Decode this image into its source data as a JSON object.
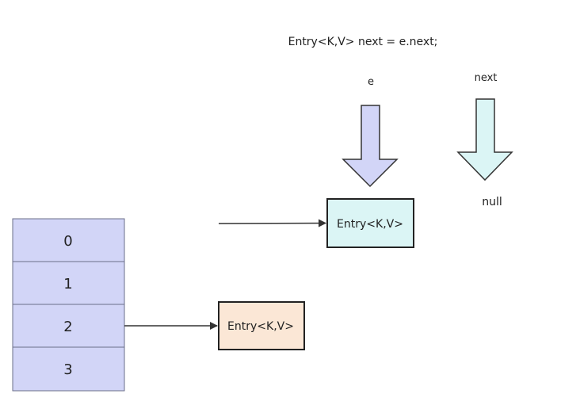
{
  "code_line": "Entry<K,V> next = e.next;",
  "pointer_e": {
    "label": "e",
    "fill": "#d2d5f7"
  },
  "pointer_next": {
    "label": "next",
    "fill": "#dbf5f5",
    "target": "null"
  },
  "table": {
    "fill": "#d2d5f7",
    "stroke": "#6b6f8a",
    "cells": [
      "0",
      "1",
      "2",
      "3"
    ]
  },
  "nodes": {
    "entry_top": {
      "label": "Entry<K,V>",
      "fill": "#dbf5f5"
    },
    "entry_bottom": {
      "label": "Entry<K,V>",
      "fill": "#fbe7d6"
    }
  }
}
